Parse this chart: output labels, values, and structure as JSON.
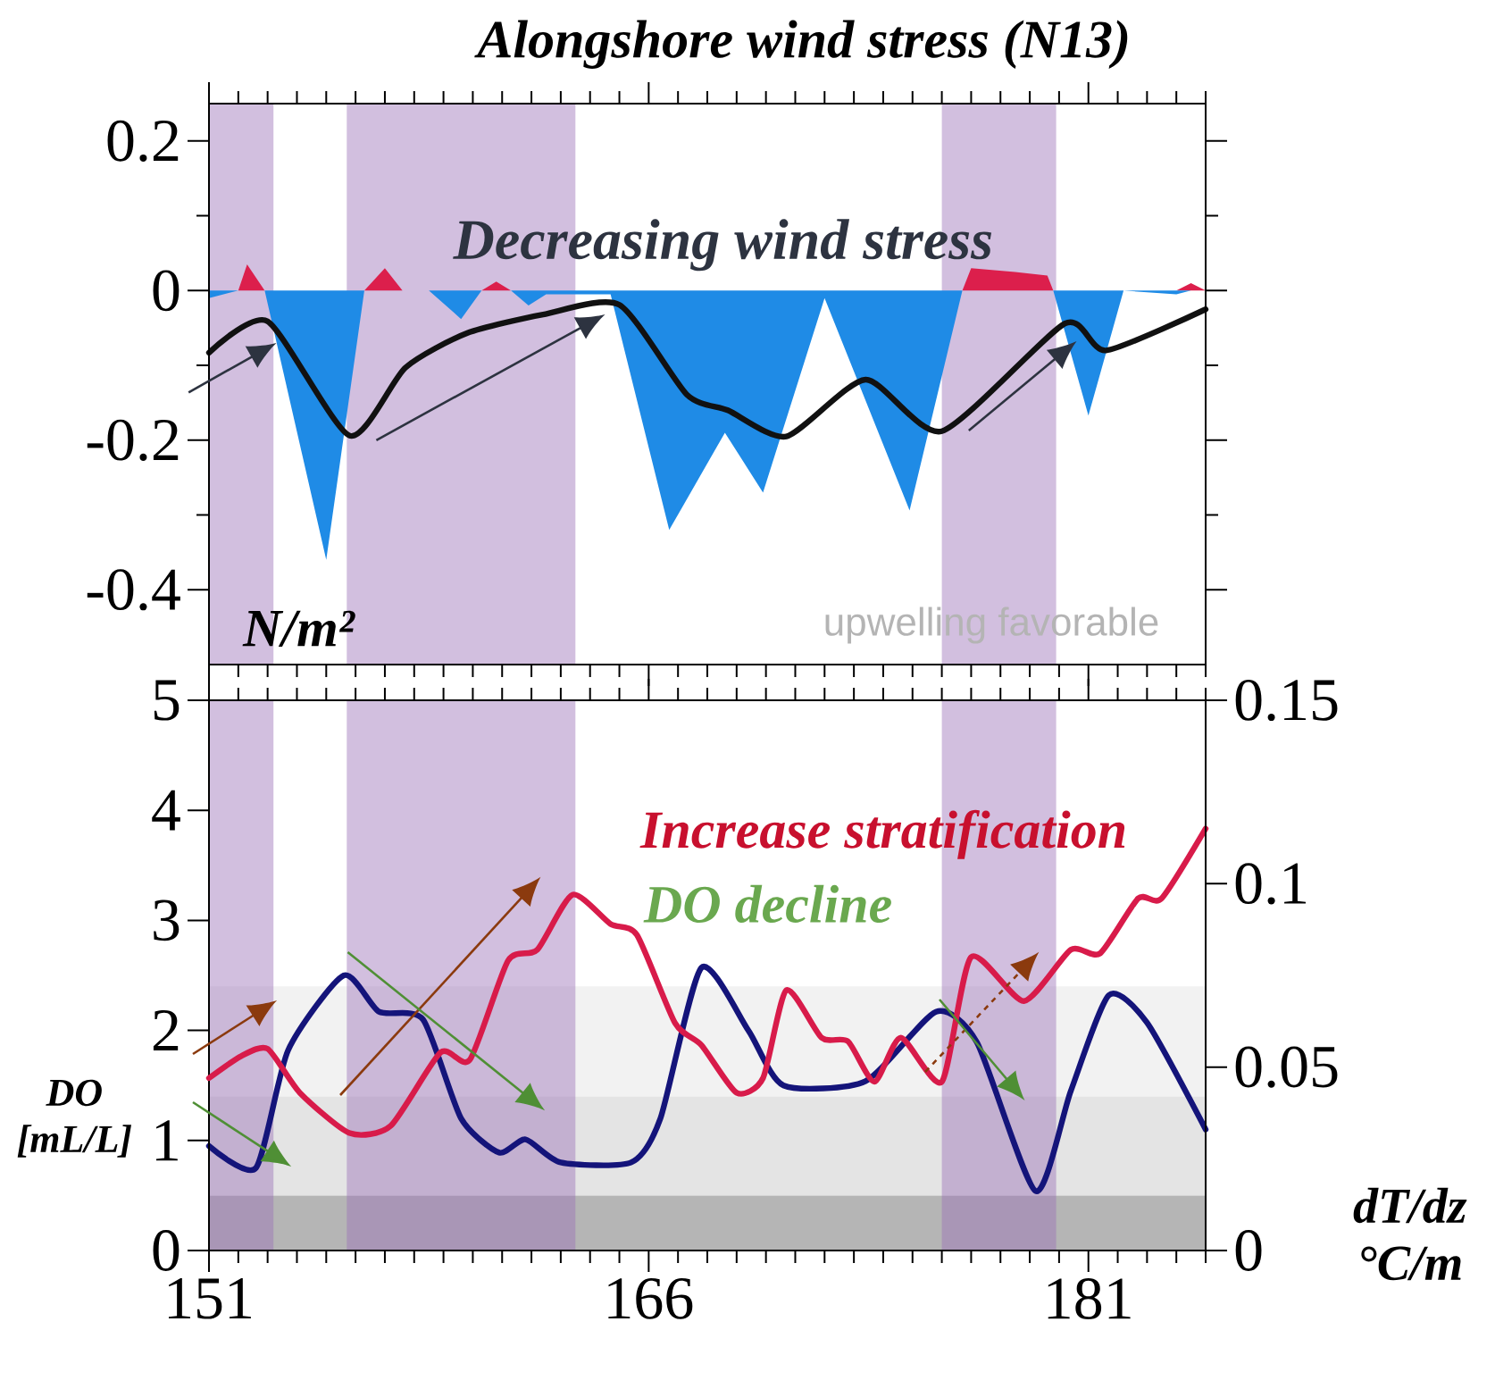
{
  "chart_data": [
    {
      "type": "area",
      "title": "Alongshore wind stress (N13)",
      "x": [
        151,
        152,
        152.3,
        152.9,
        155,
        156.3,
        157,
        157.6,
        158.5,
        159.6,
        160.3,
        160.8,
        161.3,
        161.9,
        162.5,
        164.7,
        166.7,
        168.6,
        169.9,
        172,
        174.9,
        176.7,
        177,
        178.5,
        179.6,
        179.8,
        181,
        182.2,
        184,
        184.5,
        185
      ],
      "xlim": [
        151,
        185
      ],
      "ylim": [
        -0.5,
        0.25
      ],
      "xticks": [
        151,
        {
          "value": 152,
          "label": null
        },
        {
          "value": 153,
          "label": null
        },
        {
          "value": 154,
          "label": null
        },
        {
          "value": 155,
          "label": null
        },
        {
          "value": 156,
          "label": null
        },
        {
          "value": 157,
          "label": null
        },
        {
          "value": 158,
          "label": null
        },
        {
          "value": 159,
          "label": null
        },
        {
          "value": 160,
          "label": null
        },
        {
          "value": 161,
          "label": null
        },
        {
          "value": 162,
          "label": null
        },
        {
          "value": 163,
          "label": null
        },
        {
          "value": 164,
          "label": null
        },
        {
          "value": 165,
          "label": null
        },
        166,
        {
          "value": 167,
          "label": null
        },
        {
          "value": 168,
          "label": null
        },
        {
          "value": 169,
          "label": null
        },
        {
          "value": 170,
          "label": null
        },
        {
          "value": 171,
          "label": null
        },
        {
          "value": 172,
          "label": null
        },
        {
          "value": 173,
          "label": null
        },
        {
          "value": 174,
          "label": null
        },
        {
          "value": 175,
          "label": null
        },
        {
          "value": 176,
          "label": null
        },
        {
          "value": 177,
          "label": null
        },
        {
          "value": 178,
          "label": null
        },
        {
          "value": 179,
          "label": null
        },
        {
          "value": 180,
          "label": null
        },
        181,
        {
          "value": 182,
          "label": null
        },
        {
          "value": 183,
          "label": null
        },
        {
          "value": 184,
          "label": null
        },
        {
          "value": 185,
          "label": null
        }
      ],
      "yticks": [
        0.2,
        {
          "value": 0.1,
          "label": null
        },
        0,
        {
          "value": -0.1,
          "label": null
        },
        -0.2,
        {
          "value": -0.3,
          "label": null
        },
        -0.4
      ],
      "tick_labels": "y",
      "bands": [
        {
          "axis": "x",
          "from": 151,
          "to": 153.2,
          "color": "#9b72b8"
        },
        {
          "axis": "x",
          "from": 155.7,
          "to": 163.5,
          "color": "#9b72b8"
        },
        {
          "axis": "x",
          "from": 176,
          "to": 179.9,
          "color": "#9b72b8"
        }
      ],
      "annotations": [
        "Decreasing wind stress",
        "upwelling favorable",
        "N/m²"
      ],
      "series": [
        {
          "color": "#dc1f4c",
          "values": [
            0,
            0,
            0.035,
            0,
            0,
            0,
            0.03,
            0,
            0,
            0,
            0,
            0.012,
            0,
            0,
            0,
            0,
            0,
            0,
            0,
            0,
            0,
            0,
            0.03,
            0.025,
            0.02,
            0,
            0,
            0,
            0,
            0.01,
            0
          ]
        },
        {
          "color": "#1f8be6",
          "values": [
            -0.01,
            0,
            0,
            0,
            -0.36,
            0,
            0,
            0,
            0,
            -0.038,
            0,
            0,
            0,
            -0.02,
            -0.005,
            -0.005,
            -0.32,
            -0.19,
            -0.27,
            -0.01,
            -0.294,
            0,
            0,
            0,
            0,
            0,
            -0.167,
            0,
            -0.005,
            0,
            0
          ]
        },
        {
          "type": "line",
          "color": "#111111",
          "x": [
            151,
            153,
            155.8,
            157.7,
            159.8,
            162.4,
            165,
            167.3,
            168.7,
            170.7,
            173.4,
            176,
            180.2,
            181.6,
            185
          ],
          "values": [
            -0.083,
            -0.041,
            -0.194,
            -0.103,
            -0.057,
            -0.032,
            -0.019,
            -0.139,
            -0.16,
            -0.195,
            -0.119,
            -0.188,
            -0.044,
            -0.08,
            -0.025
          ]
        }
      ]
    },
    {
      "type": "line",
      "ylabel": "DO [mL/L]",
      "y2label": "dT/dz °C/m",
      "xlim": [
        151,
        185
      ],
      "ylim": [
        0,
        5
      ],
      "y2lim": [
        0,
        0.15
      ],
      "xticks": [
        151,
        {
          "value": 152,
          "label": null
        },
        {
          "value": 153,
          "label": null
        },
        {
          "value": 154,
          "label": null
        },
        {
          "value": 155,
          "label": null
        },
        {
          "value": 156,
          "label": null
        },
        {
          "value": 157,
          "label": null
        },
        {
          "value": 158,
          "label": null
        },
        {
          "value": 159,
          "label": null
        },
        {
          "value": 160,
          "label": null
        },
        {
          "value": 161,
          "label": null
        },
        {
          "value": 162,
          "label": null
        },
        {
          "value": 163,
          "label": null
        },
        {
          "value": 164,
          "label": null
        },
        {
          "value": 165,
          "label": null
        },
        166,
        {
          "value": 167,
          "label": null
        },
        {
          "value": 168,
          "label": null
        },
        {
          "value": 169,
          "label": null
        },
        {
          "value": 170,
          "label": null
        },
        {
          "value": 171,
          "label": null
        },
        {
          "value": 172,
          "label": null
        },
        {
          "value": 173,
          "label": null
        },
        {
          "value": 174,
          "label": null
        },
        {
          "value": 175,
          "label": null
        },
        {
          "value": 176,
          "label": null
        },
        {
          "value": 177,
          "label": null
        },
        {
          "value": 178,
          "label": null
        },
        {
          "value": 179,
          "label": null
        },
        {
          "value": 180,
          "label": null
        },
        181,
        {
          "value": 182,
          "label": null
        },
        {
          "value": 183,
          "label": null
        },
        {
          "value": 184,
          "label": null
        },
        {
          "value": 185,
          "label": null
        }
      ],
      "yticks": [
        0,
        1,
        2,
        3,
        4,
        5
      ],
      "y2ticks": [
        0,
        0.05,
        0.1,
        0.15
      ],
      "bands": [
        {
          "axis": "y",
          "from": 0,
          "to": 0.5,
          "color": "#5a5a5a"
        },
        {
          "axis": "y",
          "from": 0.5,
          "to": 1.4,
          "color": "#c4c4c4"
        },
        {
          "axis": "y",
          "from": 1.4,
          "to": 2.4,
          "color": "#e2e2e2"
        },
        {
          "axis": "x",
          "from": 151,
          "to": 153.2,
          "color": "#9b72b8"
        },
        {
          "axis": "x",
          "from": 155.7,
          "to": 163.5,
          "color": "#9b72b8"
        },
        {
          "axis": "x",
          "from": 176,
          "to": 179.9,
          "color": "#9b72b8"
        }
      ],
      "annotations": [
        "Increase stratification",
        "DO decline"
      ],
      "series": [
        {
          "color": "#d81b4a",
          "axis": "y2",
          "x": [
            151,
            152.1,
            153,
            154.1,
            155.8,
            157.2,
            158.9,
            159.9,
            161.2,
            162.2,
            163.4,
            164.7,
            165.6,
            166.9,
            167.8,
            169,
            169.9,
            170.7,
            171.9,
            172.8,
            173.7,
            174.6,
            176,
            177,
            178.8,
            180.4,
            181.4,
            182.7,
            183.5,
            185
          ],
          "values": [
            0.047,
            0.053,
            0.055,
            0.043,
            0.032,
            0.034,
            0.054,
            0.052,
            0.079,
            0.082,
            0.097,
            0.089,
            0.086,
            0.062,
            0.056,
            0.043,
            0.047,
            0.071,
            0.058,
            0.057,
            0.046,
            0.058,
            0.046,
            0.08,
            0.068,
            0.082,
            0.081,
            0.096,
            0.096,
            0.115
          ]
        },
        {
          "color": "#14147a",
          "x": [
            151,
            152.6,
            153.7,
            155.6,
            156.8,
            158.3,
            159.6,
            160.9,
            161.8,
            163,
            165.4,
            166.4,
            167.8,
            169.4,
            170.6,
            173.4,
            175.8,
            177.2,
            179.2,
            180.4,
            181.7,
            183,
            185
          ],
          "values": [
            0.95,
            0.75,
            1.82,
            2.5,
            2.17,
            2.1,
            1.2,
            0.89,
            1.01,
            0.8,
            0.8,
            1.2,
            2.57,
            2.0,
            1.5,
            1.54,
            2.17,
            1.89,
            0.54,
            1.45,
            2.32,
            2.07,
            1.1
          ]
        }
      ]
    }
  ]
}
